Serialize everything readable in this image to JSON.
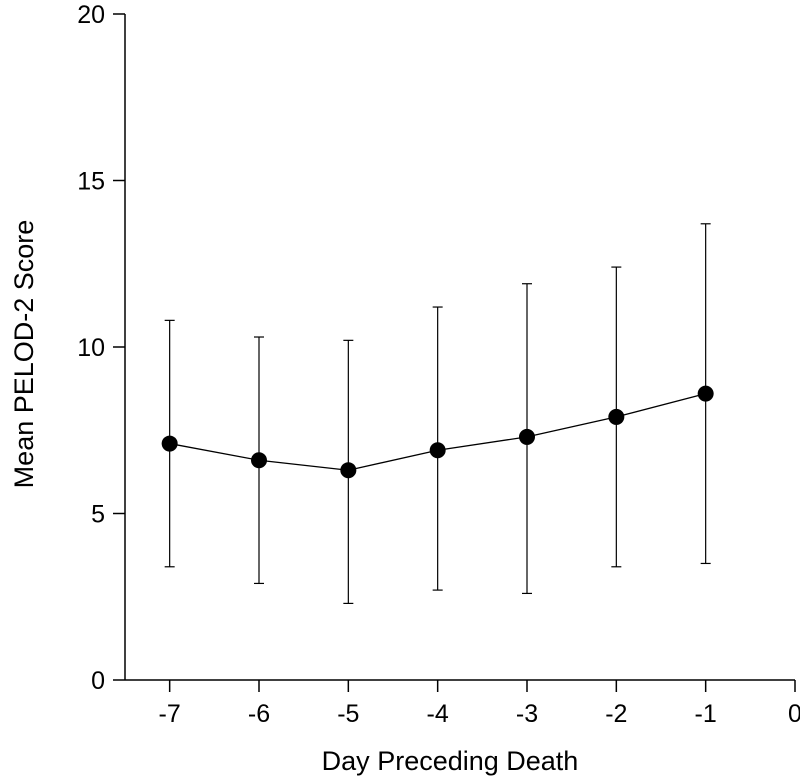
{
  "chart_data": {
    "type": "line",
    "title": "",
    "xlabel": "Day Preceding Death",
    "ylabel": "Mean PELOD-2 Score",
    "xlim": [
      -7.5,
      0
    ],
    "ylim": [
      0,
      20
    ],
    "x_ticks": [
      -7,
      -6,
      -5,
      -4,
      -3,
      -2,
      -1,
      0
    ],
    "x_tick_labels": [
      "-7",
      "-6",
      "-5",
      "-4",
      "-3",
      "-2",
      "-1",
      "0"
    ],
    "y_ticks": [
      0,
      5,
      10,
      15,
      20
    ],
    "y_tick_labels": [
      "0",
      "5",
      "10",
      "15",
      "20"
    ],
    "grid": false,
    "legend": "none",
    "colors": {
      "line": "#000000",
      "marker": "#000000"
    },
    "series": [
      {
        "name": "Mean PELOD-2 Score",
        "x": [
          -7,
          -6,
          -5,
          -4,
          -3,
          -2,
          -1
        ],
        "y": [
          7.1,
          6.6,
          6.3,
          6.9,
          7.3,
          7.9,
          8.6
        ],
        "error_low": [
          3.4,
          2.9,
          2.3,
          2.7,
          2.6,
          3.4,
          3.5
        ],
        "error_high": [
          10.8,
          10.3,
          10.2,
          11.2,
          11.9,
          12.4,
          13.7
        ]
      }
    ]
  }
}
